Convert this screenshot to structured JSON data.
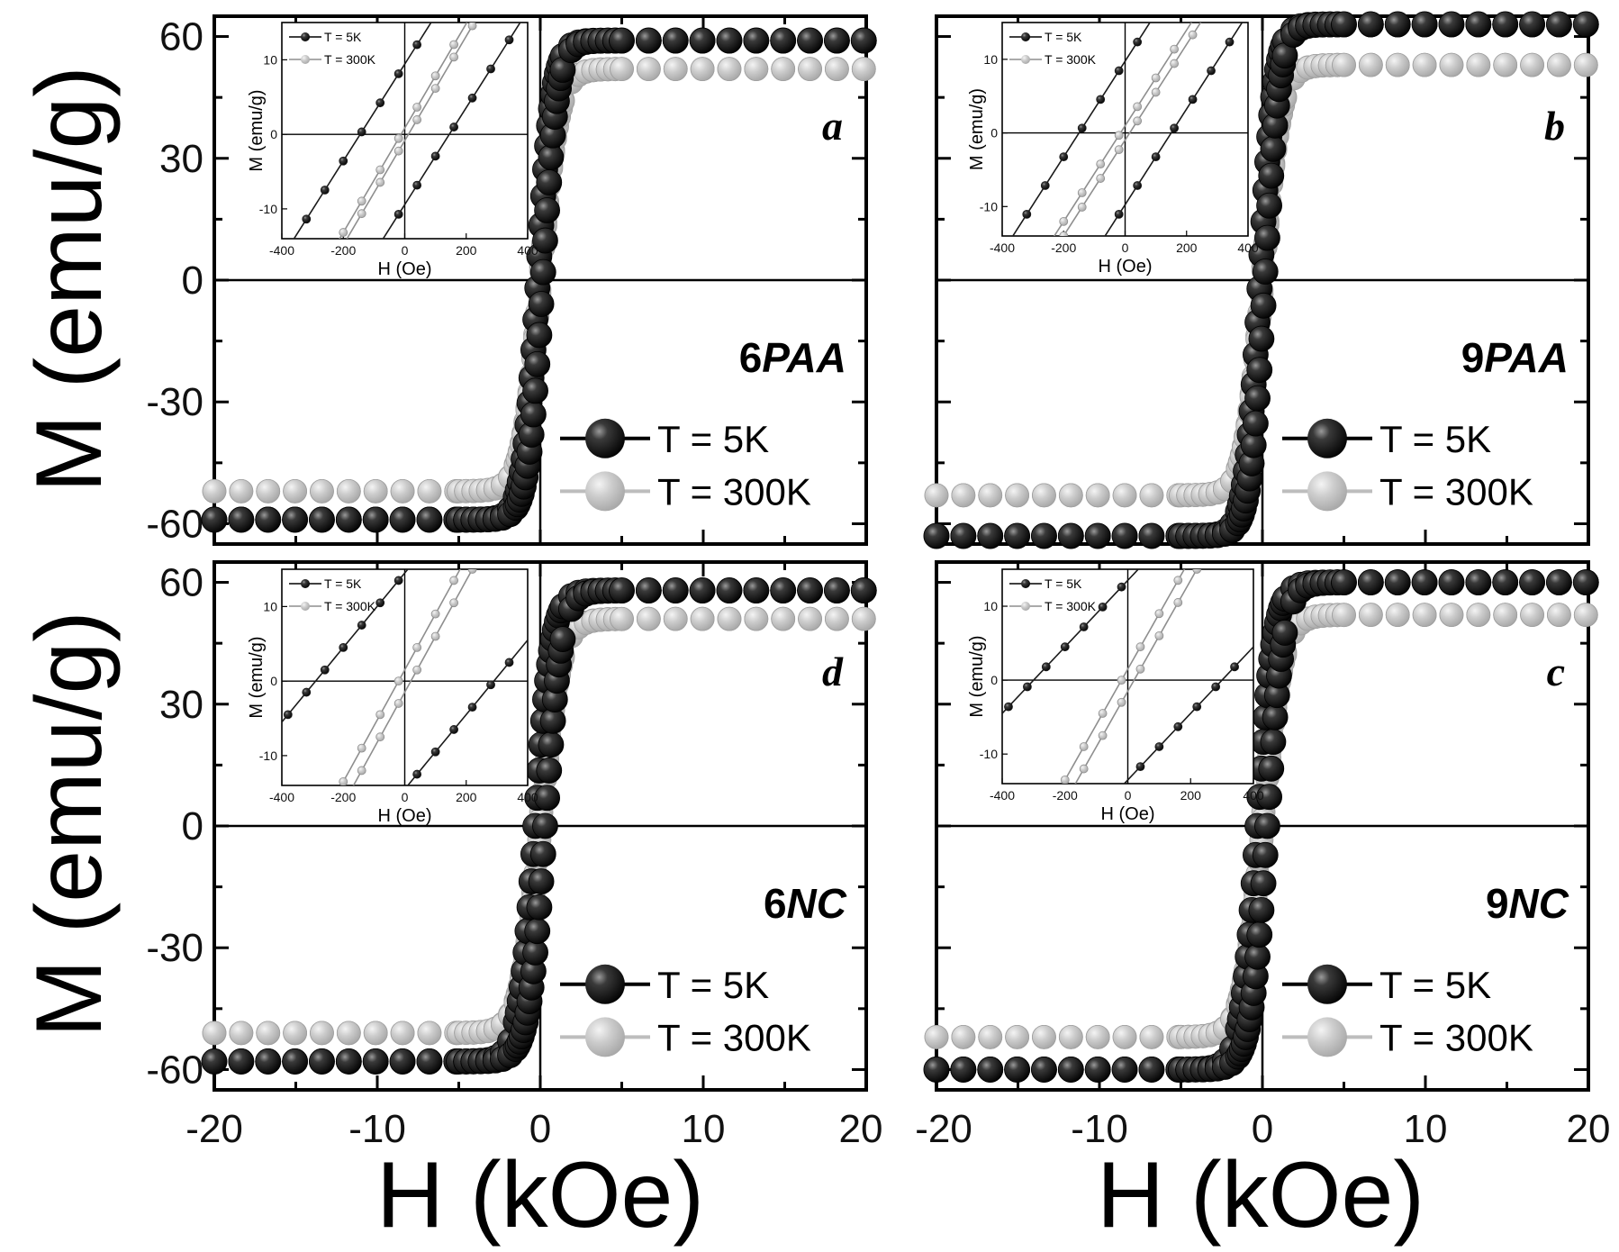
{
  "figure": {
    "y_axis_title": "M (emu/g)",
    "x_axis_title": "H (kOe)",
    "legend": [
      "T = 5K",
      "T = 300K"
    ],
    "inset_legend": [
      "T = 5K",
      "T = 300K"
    ],
    "inset_x_title": "H (Oe)",
    "inset_y_title": "M (emu/g)",
    "colors": {
      "series_5K": "#1a1a1a",
      "series_300K": "#bdbdbd",
      "axis": "#000000"
    }
  },
  "chart_data": [
    {
      "type": "scatter",
      "panel": "a",
      "sample_number": "6",
      "sample_suffix": "PAA",
      "xlabel": "H (kOe)",
      "ylabel": "M (emu/g)",
      "xlim": [
        -20,
        20
      ],
      "ylim": [
        -65,
        65
      ],
      "x_ticks": [
        "-20",
        "-10",
        "0",
        "10",
        "20"
      ],
      "y_ticks": [
        "-60",
        "-30",
        "0",
        "30",
        "60"
      ],
      "series": [
        {
          "name": "T = 5K",
          "ms": 59,
          "hk": 0.9,
          "hc": 0.15
        },
        {
          "name": "T = 300K",
          "ms": 52,
          "hk": 1.1,
          "hc": 0.01
        }
      ],
      "inset": {
        "xlim": [
          -400,
          400
        ],
        "ylim": [
          -14,
          15
        ],
        "x_ticks": [
          "-400",
          "-200",
          "0",
          "200",
          "400"
        ],
        "y_ticks": [
          "-10",
          "0",
          "10"
        ],
        "series": [
          {
            "name": "T = 5K",
            "hc": 145,
            "slope": 0.065
          },
          {
            "name": "T = 300K",
            "hc": 12,
            "slope": 0.07
          }
        ]
      }
    },
    {
      "type": "scatter",
      "panel": "b",
      "sample_number": "9",
      "sample_suffix": "PAA",
      "xlabel": "H (kOe)",
      "ylabel": "M (emu/g)",
      "xlim": [
        -20,
        20
      ],
      "ylim": [
        -65,
        65
      ],
      "x_ticks": [
        "-20",
        "-10",
        "0",
        "10",
        "20"
      ],
      "y_ticks": [
        "-60",
        "-30",
        "0",
        "30",
        "60"
      ],
      "series": [
        {
          "name": "T = 5K",
          "ms": 63,
          "hk": 0.9,
          "hc": 0.15
        },
        {
          "name": "T = 300K",
          "ms": 53,
          "hk": 1.1,
          "hc": 0.01
        }
      ],
      "inset": {
        "xlim": [
          -400,
          400
        ],
        "ylim": [
          -14,
          15
        ],
        "x_ticks": [
          "-400",
          "-200",
          "0",
          "200",
          "400"
        ],
        "y_ticks": [
          "-10",
          "0",
          "10"
        ],
        "series": [
          {
            "name": "T = 5K",
            "hc": 150,
            "slope": 0.065
          },
          {
            "name": "T = 300K",
            "hc": 15,
            "slope": 0.065
          }
        ]
      }
    },
    {
      "type": "scatter",
      "panel": "d",
      "sample_number": "6",
      "sample_suffix": "NC",
      "xlabel": "H (kOe)",
      "ylabel": "M (emu/g)",
      "xlim": [
        -20,
        20
      ],
      "ylim": [
        -65,
        65
      ],
      "x_ticks": [
        "-20",
        "-10",
        "0",
        "10",
        "20"
      ],
      "y_ticks": [
        "-60",
        "-30",
        "0",
        "30",
        "60"
      ],
      "series": [
        {
          "name": "T = 5K",
          "ms": 58,
          "hk": 1.0,
          "hc": 0.3
        },
        {
          "name": "T = 300K",
          "ms": 51,
          "hk": 1.2,
          "hc": 0.02
        }
      ],
      "inset": {
        "xlim": [
          -400,
          400
        ],
        "ylim": [
          -14,
          15
        ],
        "x_ticks": [
          "-400",
          "-200",
          "0",
          "200",
          "400"
        ],
        "y_ticks": [
          "-10",
          "0",
          "10"
        ],
        "series": [
          {
            "name": "T = 5K",
            "hc": 290,
            "slope": 0.05
          },
          {
            "name": "T = 300K",
            "hc": 20,
            "slope": 0.075
          }
        ]
      }
    },
    {
      "type": "scatter",
      "panel": "c",
      "sample_number": "9",
      "sample_suffix": "NC",
      "xlabel": "H (kOe)",
      "ylabel": "M (emu/g)",
      "xlim": [
        -20,
        20
      ],
      "ylim": [
        -65,
        65
      ],
      "x_ticks": [
        "-20",
        "-10",
        "0",
        "10",
        "20"
      ],
      "y_ticks": [
        "-60",
        "-30",
        "0",
        "30",
        "60"
      ],
      "series": [
        {
          "name": "T = 5K",
          "ms": 60,
          "hk": 1.0,
          "hc": 0.3
        },
        {
          "name": "T = 300K",
          "ms": 52,
          "hk": 1.2,
          "hc": 0.02
        }
      ],
      "inset": {
        "xlim": [
          -400,
          400
        ],
        "ylim": [
          -14,
          15
        ],
        "x_ticks": [
          "-400",
          "-200",
          "0",
          "200",
          "400"
        ],
        "y_ticks": [
          "-10",
          "0",
          "10"
        ],
        "series": [
          {
            "name": "T = 5K",
            "hc": 300,
            "slope": 0.045
          },
          {
            "name": "T = 300K",
            "hc": 20,
            "slope": 0.075
          }
        ]
      }
    }
  ]
}
